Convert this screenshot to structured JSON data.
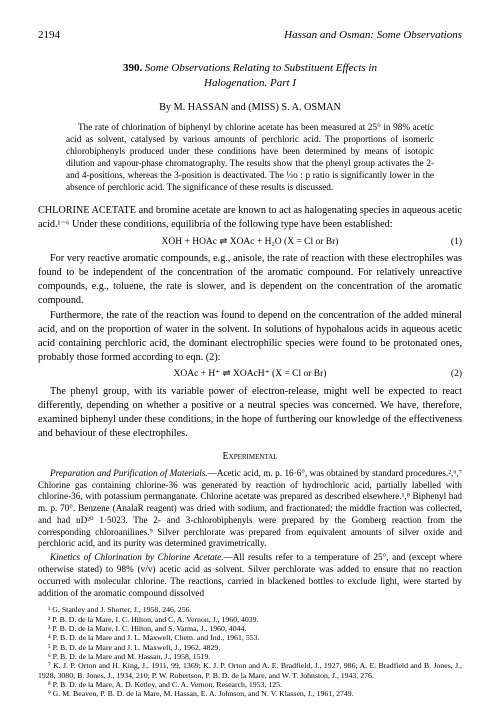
{
  "page_number": "2194",
  "running_head": "Hassan and Osman: Some Observations",
  "paper_number": "390.",
  "title_line1": "Some Observations Relating to Substituent Effects in",
  "title_line2": "Halogenation.   Part I",
  "authors": "By M. HASSAN and (MISS) S. A. OSMAN",
  "abstract": "The rate of chlorination of biphenyl by chlorine acetate has been measured at 25° in 98% acetic acid as solvent, catalysed by various amounts of perchloric acid. The proportions of isomeric chlorobiphenyls produced under these conditions have been determined by means of isotopic dilution and vapour-phase chromatography. The results show that the phenyl group activates the 2- and 4-positions, whereas the 3-position is deactivated. The ⅓o : p ratio is significantly lower in the absence of perchloric acid. The significance of these results is discussed.",
  "para1_pre": "CHLORINE ACETATE",
  "para1_rest": " and bromine acetate are known to act as halogenating species in aqueous acetic acid.¹⁻⁶ Under these conditions, equilibria of the following type have been established:",
  "eqn1": "XOH + HOAc ⇌ XOAc + H₂O        (X = Cl or Br)",
  "eqn1_label": "(1)",
  "para2": "For very reactive aromatic compounds, e.g., anisole, the rate of reaction with these electrophiles was found to be independent of the concentration of the aromatic compound. For relatively unreactive compounds, e.g., toluene, the rate is slower, and is dependent on the concentration of the aromatic compound.",
  "para3": "Furthermore, the rate of the reaction was found to depend on the concentration of the added mineral acid, and on the proportion of water in the solvent. In solutions of hypohalous acids in aqueous acetic acid containing perchloric acid, the dominant electrophilic species were found to be protonated ones, probably those formed according to eqn. (2):",
  "eqn2": "XOAc + H⁺ ⇌ XOAcH⁺        (X = Cl or Br)",
  "eqn2_label": "(2)",
  "para4": "The phenyl group, with its variable power of electron-release, might well be expected to react differently, depending on whether a positive or a neutral species was concerned. We have, therefore, examined biphenyl under these conditions, in the hope of furthering our knowledge of the effectiveness and behaviour of these electrophiles.",
  "section_experimental": "Experimental",
  "exp_para1_head": "Preparation and Purification of Materials.",
  "exp_para1": "—Acetic acid, m. p. 16·6°, was obtained by standard procedures.²,⁶,⁷ Chlorine gas containing chlorine-36 was generated by reaction of hydrochloric acid, partially labelled with chlorine-36, with potassium permanganate. Chlorine acetate was prepared as described elsewhere.¹,⁸ Biphenyl had m. p. 70°. Benzene (AnalaR reagent) was dried with sodium, and fractionated; the middle fraction was collected, and had nD²⁰ 1·5023. The 2- and 3-chlorobiphenyls were prepared by the Gomberg reaction from the corresponding chloroanilines.⁹ Silver perchlorate was prepared from equivalent amounts of silver oxide and perchloric acid, and its purity was determined gravimetrically.",
  "exp_para2_head": "Kinetics of Chlorination by Chlorine Acetate.",
  "exp_para2": "—All results refer to a temperature of 25°, and (except where otherwise stated) to 98% (v/v) acetic acid as solvent. Silver perchlorate was added to ensure that no reaction occurred with molecular chlorine. The reactions, carried in blackened bottles to exclude light, were started by addition of the aromatic compound dissolved",
  "refs": [
    "¹ G. Stanley and J. Shorter, J., 1958, 246, 256.",
    "² P. B. D. de la Mare, I. C. Hilton, and C. A. Vernon, J., 1960, 4039.",
    "³ P. B. D. de la Mare, I. C. Hilton, and S. Varma, J., 1960, 4044.",
    "⁴ P. B. D. de la Mare and J. L. Maxwell, Chem. and Ind., 1961, 553.",
    "⁵ P. B. D. de la Mare and J. L. Maxwell, J., 1962, 4829.",
    "⁶ P. B. D. de la Mare and M. Hassan, J., 1958, 1519.",
    "⁷ K. J. P. Orton and H. King, J., 1911, 99, 1369; K. J. P. Orton and A. E. Bradfield, J., 1927, 986; A. E. Bradfield and B. Jones, J., 1928, 3080; B. Jones, J., 1934, 210; P. W. Robertson, P. B. D. de la Mare, and W. T. Johnston, J., 1943, 276.",
    "⁸ P. B. D. de la Mare, A. D. Ketley, and C. A. Vernon, Research, 1953, 125.",
    "⁹ G. M. Beaven, P. B. D. de la Mare, M. Hassan, E. A. Johnson, and N. V. Klassen, J., 1961, 2749."
  ]
}
